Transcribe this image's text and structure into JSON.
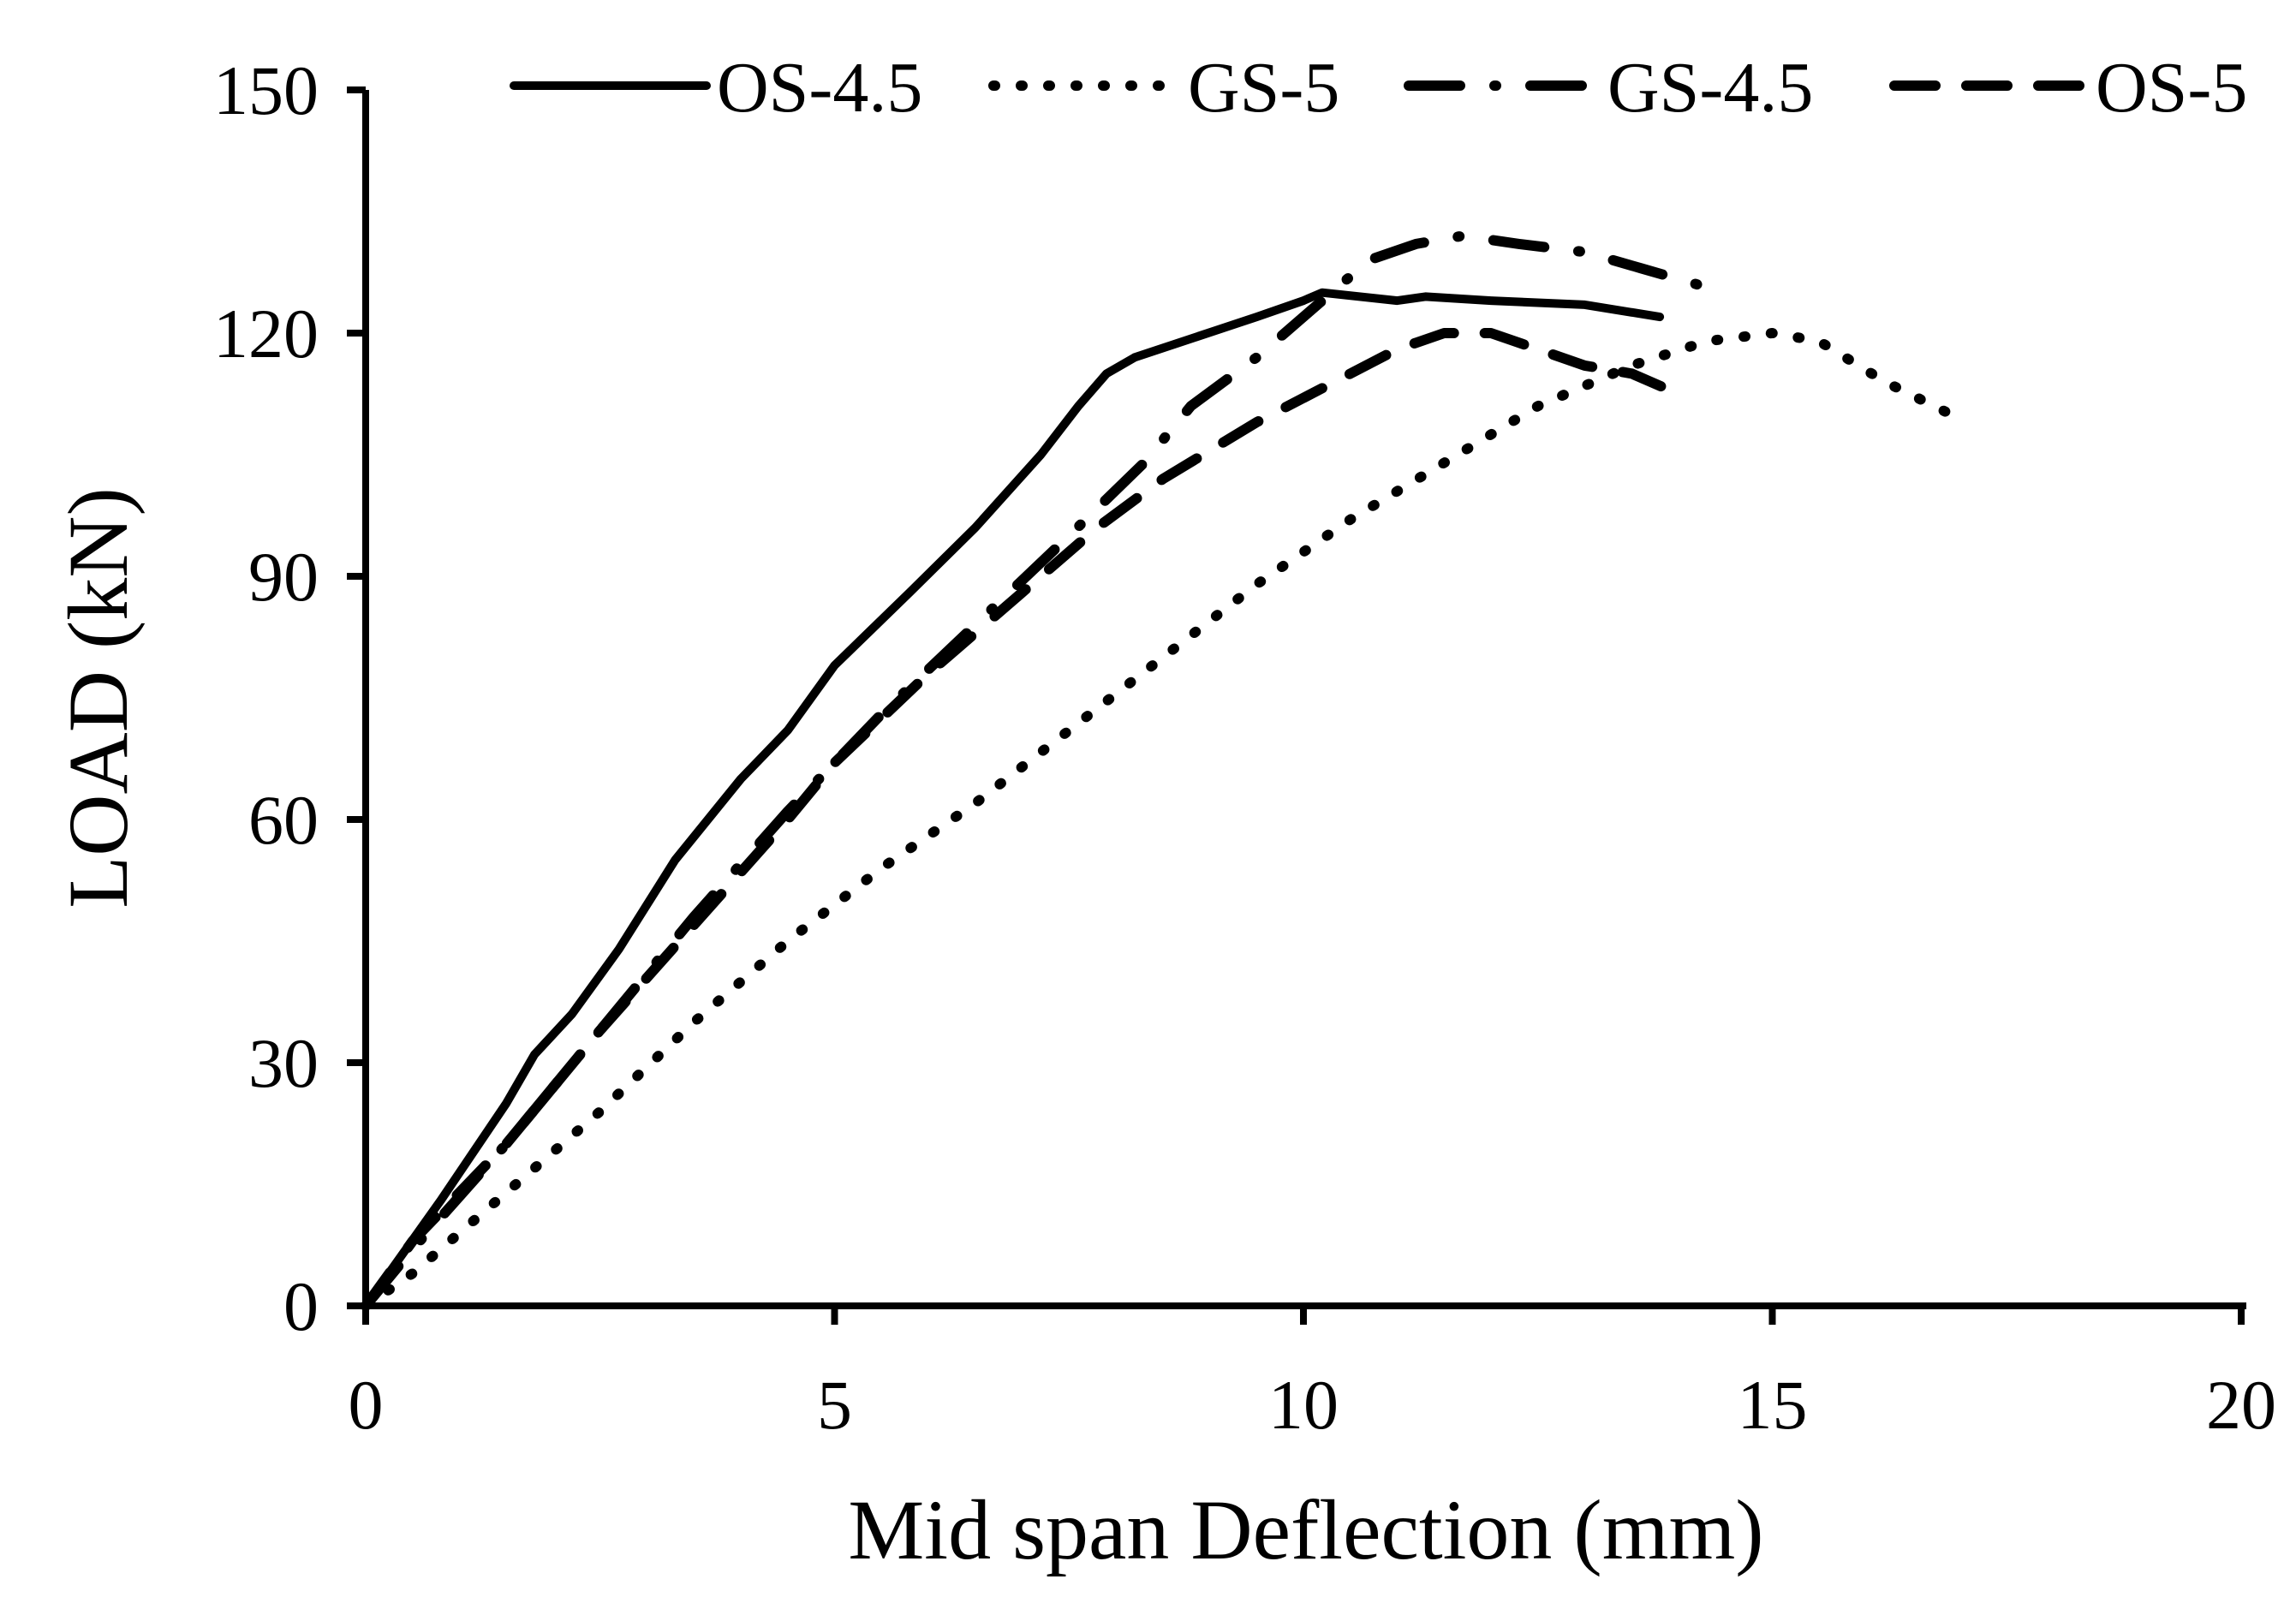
{
  "chart_data": {
    "type": "line",
    "title": "",
    "xlabel": "Mid span Deflection (mm)",
    "ylabel": "LOAD (kN)",
    "xlim": [
      0,
      20
    ],
    "ylim": [
      0,
      150
    ],
    "xticks": [
      0,
      5,
      10,
      15,
      20
    ],
    "yticks": [
      0,
      30,
      60,
      90,
      120,
      150
    ],
    "xtick_labels": [
      "0",
      "5",
      "10",
      "15",
      "20"
    ],
    "ytick_labels": [
      "0",
      "30",
      "60",
      "90",
      "120",
      "150"
    ],
    "legend_position": "top",
    "grid": false,
    "series": [
      {
        "name": "OS-4.5",
        "style": "solid",
        "points": [
          [
            0,
            0
          ],
          [
            0.8,
            13
          ],
          [
            1.5,
            25
          ],
          [
            1.8,
            31
          ],
          [
            2.2,
            36
          ],
          [
            2.7,
            44
          ],
          [
            3.3,
            55
          ],
          [
            4.0,
            65
          ],
          [
            4.5,
            71
          ],
          [
            5.0,
            79
          ],
          [
            5.8,
            88
          ],
          [
            6.5,
            96
          ],
          [
            7.2,
            105
          ],
          [
            7.6,
            111
          ],
          [
            7.9,
            115
          ],
          [
            8.2,
            117
          ],
          [
            9.5,
            122
          ],
          [
            10.0,
            124
          ],
          [
            10.2,
            125
          ],
          [
            11.0,
            124
          ],
          [
            11.3,
            124.5
          ],
          [
            12.0,
            124
          ],
          [
            13.0,
            123.5
          ],
          [
            13.8,
            122
          ]
        ]
      },
      {
        "name": "GS-5",
        "style": "dotted",
        "points": [
          [
            0,
            0
          ],
          [
            0.5,
            4
          ],
          [
            1.5,
            14
          ],
          [
            2.5,
            24
          ],
          [
            3.5,
            35
          ],
          [
            4.5,
            45
          ],
          [
            5.5,
            54
          ],
          [
            6.5,
            62
          ],
          [
            7.5,
            71
          ],
          [
            8.5,
            80
          ],
          [
            9.5,
            89
          ],
          [
            10.5,
            97
          ],
          [
            11.5,
            104
          ],
          [
            12.5,
            111
          ],
          [
            13.5,
            116
          ],
          [
            14.3,
            119
          ],
          [
            15.0,
            120
          ],
          [
            15.5,
            119
          ],
          [
            16.2,
            114
          ],
          [
            16.9,
            110
          ]
        ]
      },
      {
        "name": "GS-4.5",
        "style": "dash-dot",
        "points": [
          [
            0,
            0
          ],
          [
            0.5,
            7
          ],
          [
            1.5,
            20
          ],
          [
            2.5,
            34
          ],
          [
            3.5,
            48
          ],
          [
            4.5,
            61
          ],
          [
            5.5,
            73
          ],
          [
            6.5,
            84
          ],
          [
            7.5,
            95
          ],
          [
            8.3,
            104
          ],
          [
            8.8,
            111
          ],
          [
            9.5,
            117
          ],
          [
            10.2,
            124
          ],
          [
            10.7,
            129
          ],
          [
            11.2,
            131
          ],
          [
            11.7,
            132
          ],
          [
            12.3,
            131
          ],
          [
            13.0,
            130
          ],
          [
            13.6,
            128
          ],
          [
            14.2,
            126
          ]
        ]
      },
      {
        "name": "OS-5",
        "style": "dashed",
        "points": [
          [
            0,
            0
          ],
          [
            0.5,
            8
          ],
          [
            1.5,
            20
          ],
          [
            2.5,
            34
          ],
          [
            3.5,
            47
          ],
          [
            4.5,
            60
          ],
          [
            5.0,
            67
          ],
          [
            6.0,
            78
          ],
          [
            7.0,
            88
          ],
          [
            7.8,
            96
          ],
          [
            8.5,
            102
          ],
          [
            9.5,
            109
          ],
          [
            10.5,
            115
          ],
          [
            11.0,
            118
          ],
          [
            11.5,
            120
          ],
          [
            12.0,
            120
          ],
          [
            12.5,
            118
          ],
          [
            13.0,
            116
          ],
          [
            13.5,
            115
          ],
          [
            13.9,
            113
          ]
        ]
      }
    ]
  }
}
